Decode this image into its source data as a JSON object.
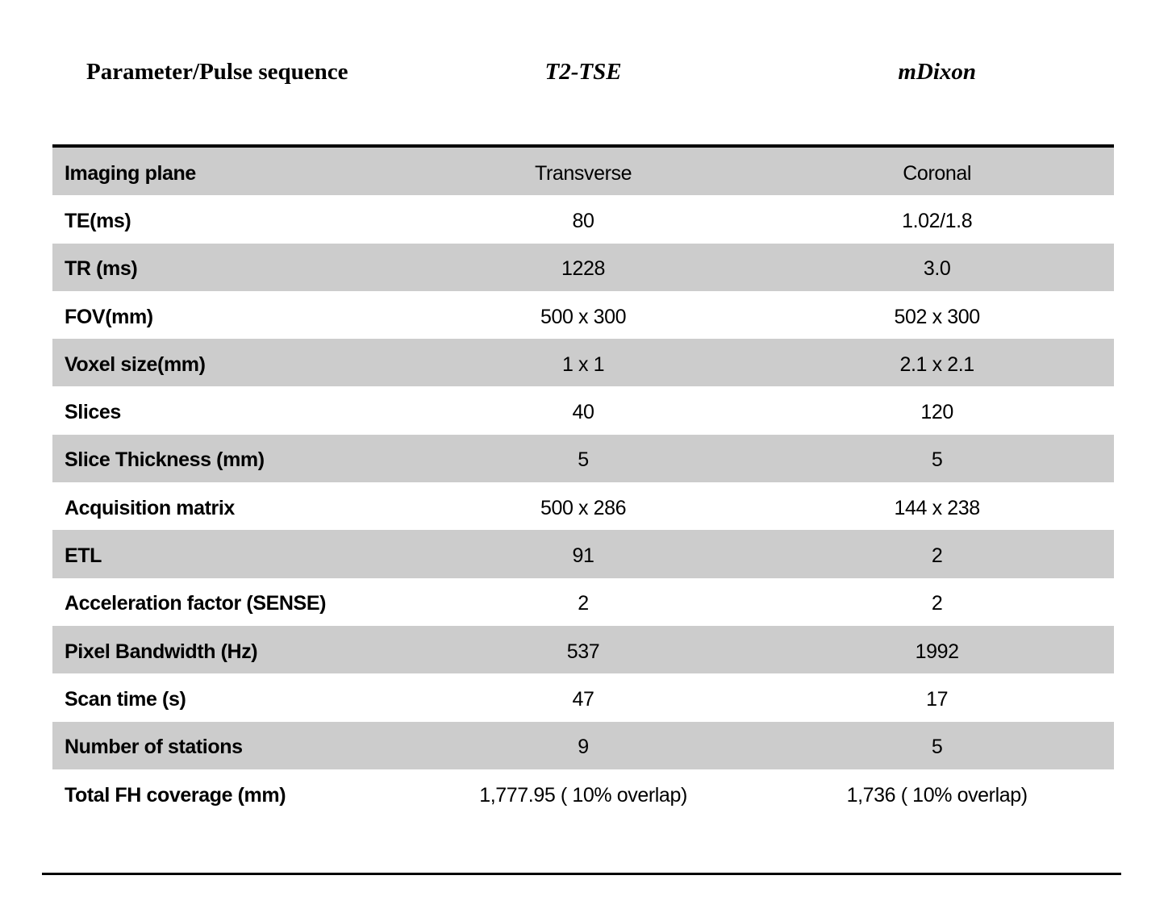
{
  "header": {
    "parameter_label": "Parameter/Pulse sequence",
    "col1_label": "T2-TSE",
    "col2_label": "mDixon"
  },
  "table": {
    "columns": [
      "Parameter/Pulse sequence",
      "T2-TSE",
      "mDixon"
    ],
    "rows": [
      {
        "parameter": "Imaging plane",
        "t2_tse": "Transverse",
        "mdixon": "Coronal"
      },
      {
        "parameter": "TE(ms)",
        "t2_tse": "80",
        "mdixon": "1.02/1.8"
      },
      {
        "parameter": "TR (ms)",
        "t2_tse": "1228",
        "mdixon": "3.0"
      },
      {
        "parameter": "FOV(mm)",
        "t2_tse": "500 x 300",
        "mdixon": "502 x 300"
      },
      {
        "parameter": "Voxel size(mm)",
        "t2_tse": "1 x 1",
        "mdixon": "2.1 x 2.1"
      },
      {
        "parameter": "Slices",
        "t2_tse": "40",
        "mdixon": "120"
      },
      {
        "parameter": "Slice Thickness (mm)",
        "t2_tse": "5",
        "mdixon": "5"
      },
      {
        "parameter": "Acquisition matrix",
        "t2_tse": "500 x 286",
        "mdixon": "144 x 238"
      },
      {
        "parameter": "ETL",
        "t2_tse": "91",
        "mdixon": "2"
      },
      {
        "parameter": "Acceleration factor (SENSE)",
        "t2_tse": "2",
        "mdixon": "2"
      },
      {
        "parameter": "Pixel Bandwidth (Hz)",
        "t2_tse": "537",
        "mdixon": "1992"
      },
      {
        "parameter": "Scan time (s)",
        "t2_tse": "47",
        "mdixon": "17"
      },
      {
        "parameter": "Number of stations",
        "t2_tse": "9",
        "mdixon": "5"
      },
      {
        "parameter": "Total FH coverage (mm)",
        "t2_tse": "1,777.95 ( 10% overlap)",
        "mdixon": "1,736 ( 10% overlap)"
      }
    ]
  },
  "colors": {
    "row_alt_background": "#cccccc",
    "rule_color": "#000000",
    "text_color": "#000000",
    "page_background": "#ffffff"
  }
}
